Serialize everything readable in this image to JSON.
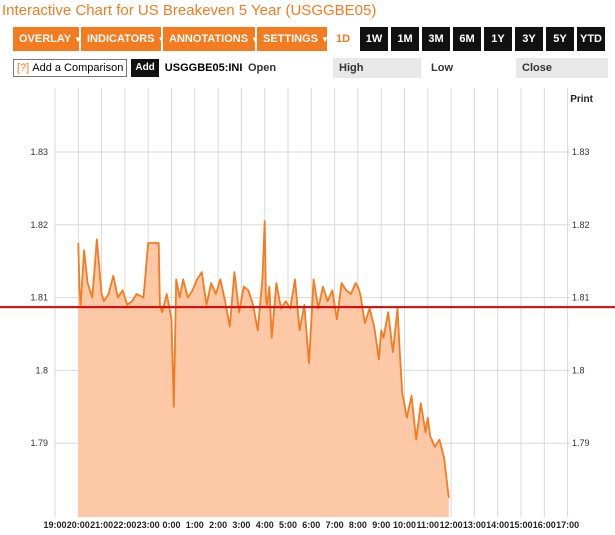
{
  "title": "Interactive Chart for US Breakeven 5 Year (USGGBE05)",
  "menus": [
    {
      "label": "OVERLAY",
      "name": "overlay-menu"
    },
    {
      "label": "INDICATORS",
      "name": "indicators-menu"
    },
    {
      "label": "ANNOTATIONS",
      "name": "annotations-menu"
    },
    {
      "label": "SETTINGS",
      "name": "settings-menu"
    }
  ],
  "ranges": [
    "1D",
    "1W",
    "1M",
    "3M",
    "6M",
    "1Y",
    "3Y",
    "5Y",
    "YTD"
  ],
  "active_range": "1D",
  "comparison": {
    "help": "[?]",
    "placeholder": "Add a Comparison",
    "add_label": "Add"
  },
  "symbol": "USGGBE05:INI",
  "quote_labels": {
    "open": "Open",
    "high": "High",
    "low": "Low",
    "close": "Close"
  },
  "print_label": "Print",
  "colors": {
    "accent": "#f47b20",
    "line": "#f47b20",
    "fill": "#fcc8a6",
    "reference": "#e00000",
    "grid": "#d9d9d9"
  },
  "chart_data": {
    "type": "area",
    "ylim": [
      1.78,
      1.84
    ],
    "yticks": [
      "1.83",
      "1.82",
      "1.81",
      "1.8",
      "1.79"
    ],
    "ytick_values": [
      1.83,
      1.82,
      1.81,
      1.8,
      1.79
    ],
    "xlabels": [
      "19:00",
      "20:00",
      "21:00",
      "22:00",
      "23:00",
      "0:00",
      "1:00",
      "2:00",
      "3:00",
      "4:00",
      "5:00",
      "6:00",
      "7:00",
      "8:00",
      "9:00",
      "10:00",
      "11:00",
      "12:00",
      "13:00",
      "14:00",
      "15:00",
      "16:00",
      "17:00"
    ],
    "reference_line": 1.8087,
    "x": [
      20.0,
      20.05,
      20.1,
      20.25,
      20.4,
      20.6,
      20.8,
      21.0,
      21.1,
      21.3,
      21.5,
      21.7,
      21.9,
      22.1,
      22.3,
      22.5,
      22.8,
      23.0,
      23.05,
      23.3,
      23.45,
      23.5,
      23.6,
      23.8,
      24.0,
      24.1,
      24.2,
      24.35,
      24.5,
      24.7,
      24.9,
      25.1,
      25.3,
      25.5,
      25.7,
      25.9,
      26.1,
      26.3,
      26.5,
      26.7,
      26.9,
      27.1,
      27.3,
      27.5,
      27.7,
      27.9,
      28.0,
      28.05,
      28.1,
      28.2,
      28.3,
      28.5,
      28.7,
      28.9,
      29.1,
      29.3,
      29.5,
      29.7,
      29.9,
      30.1,
      30.3,
      30.5,
      30.7,
      30.9,
      31.1,
      31.3,
      31.5,
      31.7,
      31.9,
      32.0,
      32.1,
      32.3,
      32.5,
      32.7,
      32.9,
      33.0,
      33.1,
      33.3,
      33.5,
      33.7,
      33.8,
      33.9,
      34.1,
      34.3,
      34.5,
      34.7,
      34.9,
      35.0,
      35.1,
      35.3,
      35.5,
      35.7,
      35.9
    ],
    "y": [
      1.8175,
      1.811,
      1.809,
      1.8165,
      1.812,
      1.81,
      1.818,
      1.8105,
      1.8095,
      1.8105,
      1.813,
      1.81,
      1.811,
      1.809,
      1.8095,
      1.8105,
      1.81,
      1.8175,
      1.8175,
      1.8175,
      1.8175,
      1.809,
      1.808,
      1.8105,
      1.807,
      1.795,
      1.8125,
      1.81,
      1.8125,
      1.81,
      1.811,
      1.8125,
      1.8135,
      1.809,
      1.812,
      1.8105,
      1.8125,
      1.8095,
      1.806,
      1.8135,
      1.808,
      1.8115,
      1.811,
      1.809,
      1.8055,
      1.8125,
      1.8205,
      1.81,
      1.809,
      1.8115,
      1.8045,
      1.812,
      1.8085,
      1.8095,
      1.8085,
      1.8125,
      1.8055,
      1.809,
      1.801,
      1.8125,
      1.8085,
      1.8115,
      1.8095,
      1.811,
      1.807,
      1.812,
      1.811,
      1.8105,
      1.812,
      1.8115,
      1.8105,
      1.8065,
      1.8085,
      1.806,
      1.8015,
      1.8055,
      1.8045,
      1.808,
      1.8025,
      1.8085,
      1.8025,
      1.797,
      1.7935,
      1.7965,
      1.7905,
      1.7955,
      1.7915,
      1.7935,
      1.791,
      1.7895,
      1.7905,
      1.788,
      1.7825
    ]
  }
}
